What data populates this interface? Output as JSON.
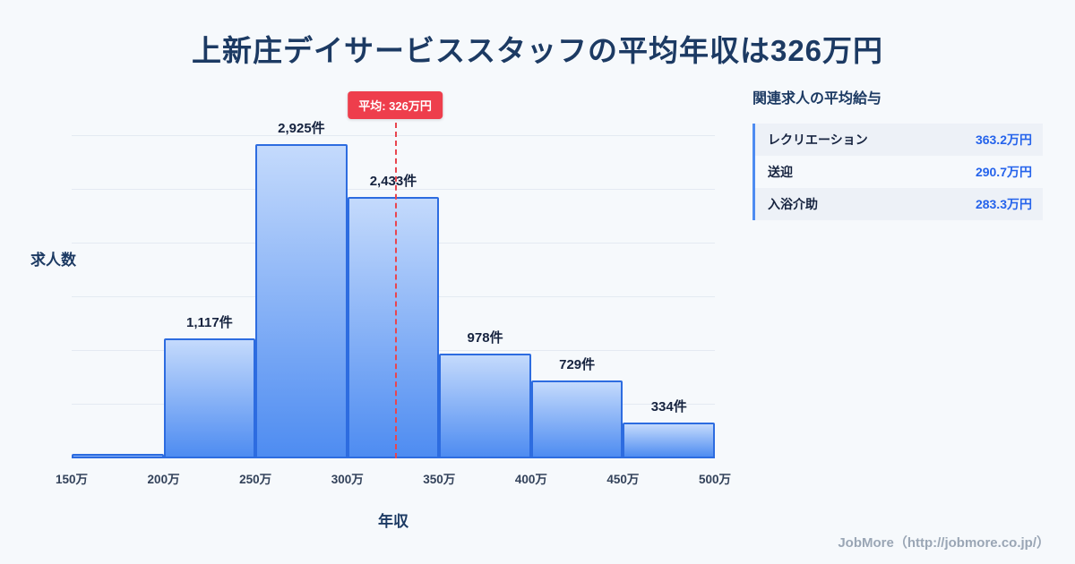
{
  "title": "上新庄デイサービススタッフの平均年収は326万円",
  "chart_data": {
    "type": "bar",
    "title": "上新庄デイサービススタッフの平均年収は326万円",
    "xlabel": "年収",
    "ylabel": "求人数",
    "x_ticks": [
      "150万",
      "200万",
      "250万",
      "300万",
      "350万",
      "400万",
      "450万",
      "500万"
    ],
    "bin_edges": [
      150,
      200,
      250,
      300,
      350,
      400,
      450,
      500
    ],
    "values": [
      40,
      1117,
      2925,
      2433,
      978,
      729,
      334
    ],
    "bar_labels": [
      "",
      "1,117件",
      "2,925件",
      "2,433件",
      "978件",
      "729件",
      "334件"
    ],
    "average_line": {
      "x": 326,
      "label": "平均: 326万円"
    },
    "ylim": [
      0,
      3000
    ],
    "grid": "horizontal",
    "colors": {
      "bar_fill_top": "#c4dafc",
      "bar_fill_bottom": "#4e8cf1",
      "bar_border": "#2d6ce0",
      "average_red": "#ee3e4c",
      "title_navy": "#1c3a63",
      "value_blue": "#2563eb"
    }
  },
  "side_panel": {
    "heading": "関連求人の平均給与",
    "rows": [
      {
        "label": "レクリエーション",
        "value": "363.2万円"
      },
      {
        "label": "送迎",
        "value": "290.7万円"
      },
      {
        "label": "入浴介助",
        "value": "283.3万円"
      }
    ]
  },
  "footer": {
    "text": "JobMore（http://jobmore.co.jp/）"
  }
}
